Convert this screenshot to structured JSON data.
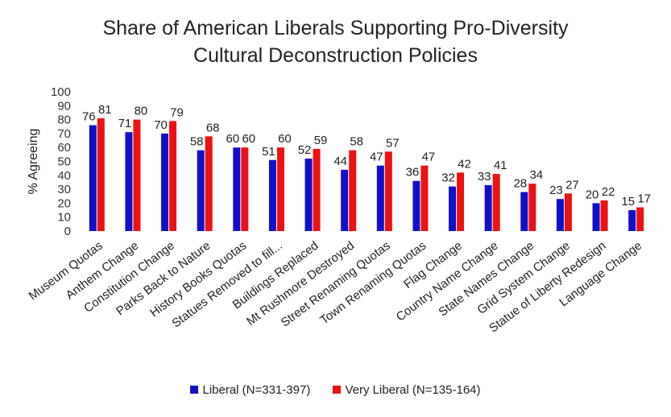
{
  "chart_data": {
    "type": "bar",
    "title_lines": [
      "Share of American Liberals Supporting Pro-Diversity",
      "Cultural Deconstruction Policies"
    ],
    "ylabel": "% Agreeing",
    "xlabel": "",
    "ylim": [
      0,
      100
    ],
    "yticks": [
      0,
      10,
      20,
      30,
      40,
      50,
      60,
      70,
      80,
      90,
      100
    ],
    "grid": false,
    "legend_position": "bottom",
    "categories": [
      "Museum Quotas",
      "Anthem Change",
      "Constitution Change",
      "Parks Back to Nature",
      "History Books Quotas",
      "Statues Removed to fill...",
      "Buildings Replaced",
      "Mt Rushmore Destroyed",
      "Street Renaming Quotas",
      "Town Renaming Quotas",
      "Flag Change",
      "Country Name Change",
      "State Names Change",
      "Grid System Change",
      "Statue of Liberty Redesign",
      "Language Change"
    ],
    "series": [
      {
        "name": "Liberal (N=331-397)",
        "color": "#1010CC",
        "values": [
          76,
          71,
          70,
          58,
          60,
          51,
          52,
          44,
          47,
          36,
          32,
          33,
          28,
          23,
          20,
          15
        ]
      },
      {
        "name": "Very Liberal (N=135-164)",
        "color": "#EE1111",
        "values": [
          81,
          80,
          79,
          68,
          60,
          60,
          59,
          58,
          57,
          47,
          42,
          41,
          34,
          27,
          22,
          17
        ]
      }
    ]
  }
}
